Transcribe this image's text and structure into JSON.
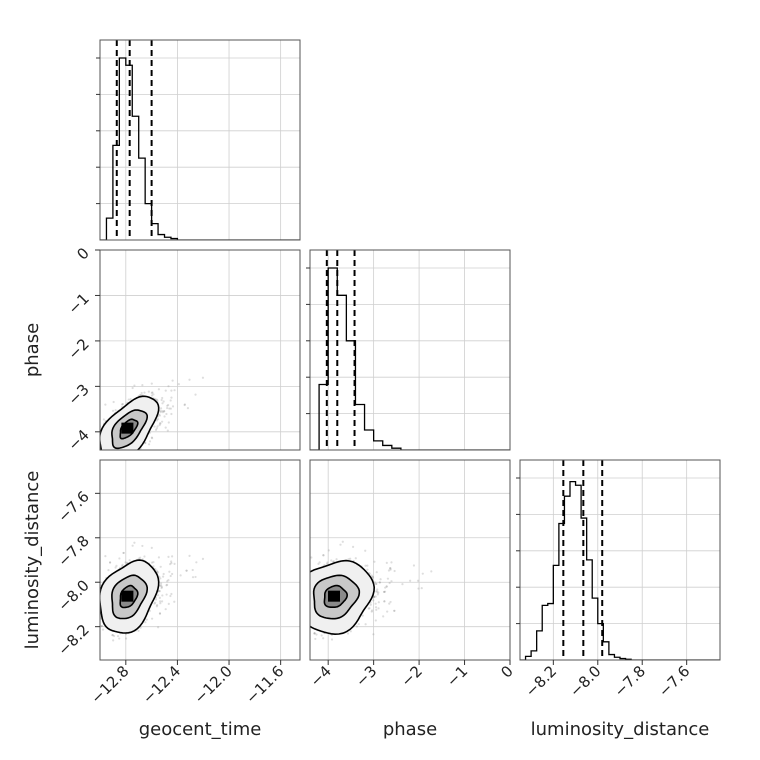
{
  "chart_data": {
    "type": "corner",
    "parameters": [
      "geocent_time",
      "phase",
      "luminosity_distance"
    ],
    "ranges": {
      "geocent_time": [
        -13.0,
        -11.45
      ],
      "phase": [
        -4.4,
        0.0
      ],
      "luminosity_distance": [
        -8.35,
        -7.45
      ]
    },
    "ticks": {
      "geocent_time": [
        -12.8,
        -12.4,
        -12.0,
        -11.6
      ],
      "phase": [
        -4,
        -3,
        -2,
        -1,
        0
      ],
      "luminosity_distance": [
        -8.2,
        -8.0,
        -7.8,
        -7.6
      ]
    },
    "tick_labels": {
      "geocent_time": [
        "−12.8",
        "−12.4",
        "−12.0",
        "−11.6"
      ],
      "phase": [
        "−4",
        "−3",
        "−2",
        "−1",
        "0"
      ],
      "luminosity_distance": [
        "−8.2",
        "−8.0",
        "−7.8",
        "−7.6"
      ]
    },
    "grid": true,
    "quantiles": {
      "geocent_time": [
        -12.87,
        -12.77,
        -12.6
      ],
      "phase": [
        -4.03,
        -3.8,
        -3.42
      ],
      "luminosity_distance": [
        -8.155,
        -8.065,
        -7.98
      ]
    },
    "histograms": {
      "geocent_time": {
        "edges": [
          -13.0,
          -12.95,
          -12.9,
          -12.85,
          -12.8,
          -12.75,
          -12.7,
          -12.65,
          -12.6,
          -12.55,
          -12.5,
          -12.45,
          -12.4,
          -12.35,
          -12.3,
          -12.25,
          -12.2,
          -12.15,
          -12.1
        ],
        "counts": [
          0.0,
          0.12,
          0.52,
          1.0,
          0.96,
          0.68,
          0.45,
          0.2,
          0.09,
          0.03,
          0.015,
          0.008,
          0.0,
          0.0,
          0.0,
          0.0,
          0.0,
          0.0
        ]
      },
      "phase": {
        "edges": [
          -4.4,
          -4.2,
          -4.0,
          -3.8,
          -3.6,
          -3.4,
          -3.2,
          -3.0,
          -2.8,
          -2.6,
          -2.4,
          -2.2
        ],
        "counts": [
          0.0,
          0.36,
          1.0,
          0.85,
          0.6,
          0.25,
          0.11,
          0.05,
          0.025,
          0.01,
          0.0
        ]
      },
      "luminosity_distance": {
        "edges": [
          -8.35,
          -8.325,
          -8.3,
          -8.275,
          -8.25,
          -8.225,
          -8.2,
          -8.175,
          -8.15,
          -8.125,
          -8.1,
          -8.075,
          -8.05,
          -8.025,
          -8.0,
          -7.975,
          -7.95,
          -7.925,
          -7.9,
          -7.875,
          -7.85,
          -7.825,
          -7.8,
          -7.775
        ],
        "counts": [
          0.0,
          0.02,
          0.05,
          0.16,
          0.3,
          0.31,
          0.52,
          0.75,
          0.9,
          0.98,
          0.96,
          0.78,
          0.55,
          0.34,
          0.2,
          0.1,
          0.03,
          0.015,
          0.008,
          0.004,
          0.0,
          0.0,
          0.0
        ]
      }
    },
    "joint": [
      {
        "x_param": "geocent_time",
        "y_param": "phase",
        "center": [
          -12.78,
          -3.93
        ],
        "spread": [
          0.09,
          0.28
        ],
        "rho": 0.55,
        "n_samples": 2200
      },
      {
        "x_param": "geocent_time",
        "y_param": "luminosity_distance",
        "center": [
          -12.78,
          -8.065
        ],
        "spread": [
          0.09,
          0.065
        ],
        "rho": 0.3,
        "n_samples": 2200
      },
      {
        "x_param": "phase",
        "y_param": "luminosity_distance",
        "center": [
          -3.85,
          -8.065
        ],
        "spread": [
          0.33,
          0.065
        ],
        "rho": 0.15,
        "n_samples": 2200
      }
    ],
    "contour_levels_sigma": [
      0.6,
      1.2,
      2.0
    ],
    "colors": {
      "line": "#000000",
      "points": "#888888",
      "grid": "#cfcfcf"
    }
  }
}
